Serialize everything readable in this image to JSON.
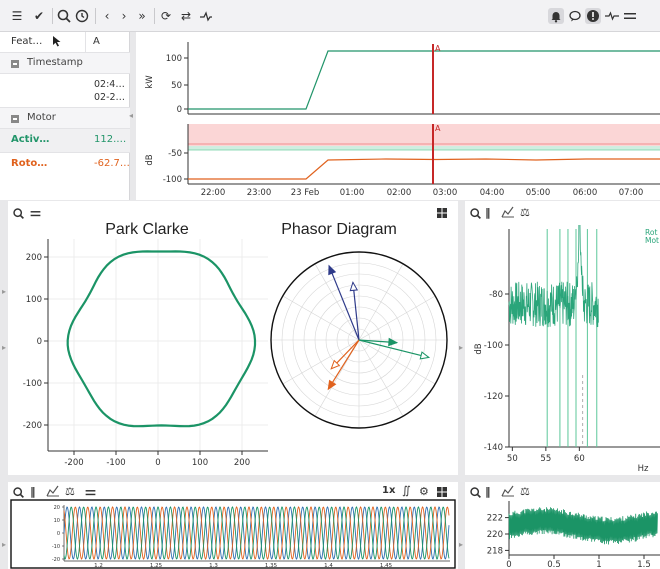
{
  "toolbar": {
    "icons": [
      "menu-icon",
      "check-all-icon",
      "zoom-icon",
      "history-icon",
      "prev-icon",
      "next-icon",
      "fast-forward-icon",
      "refresh-icon",
      "sync-icon",
      "signal-icon",
      "bell-icon",
      "comment-icon",
      "info-icon",
      "pulse-icon",
      "hamburger-icon"
    ]
  },
  "feature_table": {
    "col_feature": "Feat…",
    "col_a": "A",
    "timestamp_section": "Timestamp",
    "timestamp_values": [
      "02:4…",
      "02-2…"
    ],
    "motor_section": "Motor",
    "rows": [
      {
        "label": "Activ…",
        "value": "112.…",
        "color": "#22956a"
      },
      {
        "label": "Roto…",
        "value": "-62.7…",
        "color": "#e0621e"
      }
    ]
  },
  "trend": {
    "marker_label": "A",
    "marker_color": "#c62828",
    "top_ylabel": "kW",
    "top_yticks": [
      "100",
      "50",
      "0"
    ],
    "bottom_ylabel": "dB",
    "bottom_yticks": [
      "-50",
      "-100"
    ],
    "xticks": [
      "22:00",
      "23:00",
      "23 Feb",
      "01:00",
      "02:00",
      "03:00",
      "04:00",
      "05:00",
      "06:00",
      "07:00"
    ]
  },
  "park_clarke": {
    "title": "Park Clarke",
    "xticks": [
      "-200",
      "-100",
      "0",
      "100",
      "200"
    ],
    "yticks": [
      "200",
      "100",
      "0",
      "-100",
      "-200"
    ],
    "color": "#1b9466"
  },
  "phasor": {
    "title": "Phasor Diagram",
    "colors": {
      "voltage": "#2f3b8a",
      "current": "#e0621e",
      "green": "#1b9466"
    }
  },
  "spectrum": {
    "ylabel": "dB",
    "xlabel": "Hz",
    "yticks": [
      "-80",
      "-100",
      "-120",
      "-140"
    ],
    "xticks": [
      "50",
      "55",
      "60"
    ],
    "legend": [
      "Rot",
      "Mot"
    ],
    "color": "#2aa57a"
  },
  "waveform": {
    "speed_label": "1x",
    "colors": [
      "#2f6fb0",
      "#e0621e",
      "#1b9466"
    ],
    "yticks": [
      "20",
      "10",
      "0",
      "-10",
      "-20"
    ],
    "xticks": [
      "1.2",
      "1.25",
      "1.3",
      "1.35",
      "1.4",
      "1.45"
    ]
  },
  "voltage_trend": {
    "yticks": [
      "222",
      "220",
      "218"
    ],
    "xticks": [
      "0",
      "0.5",
      "1",
      "1.5"
    ],
    "color": "#1b9466"
  }
}
